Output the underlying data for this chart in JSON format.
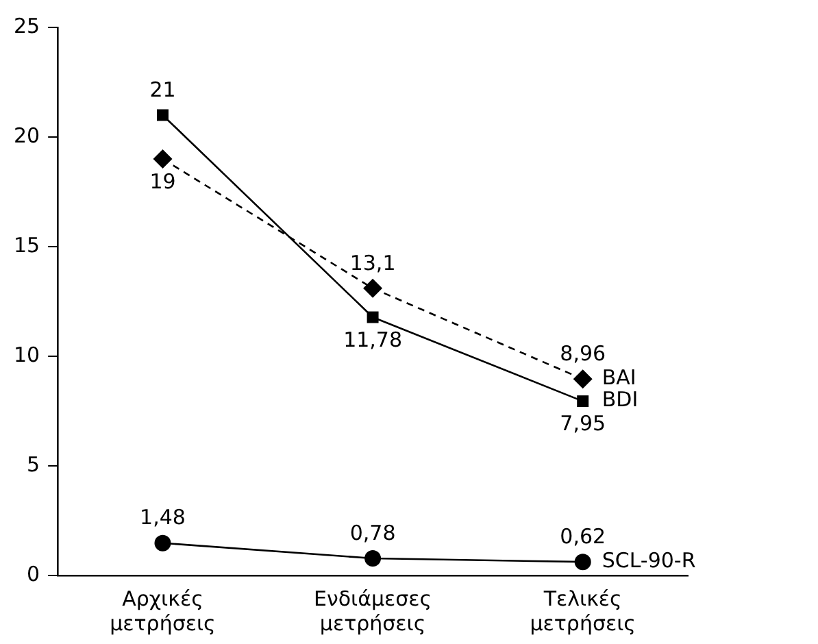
{
  "chart_data": {
    "type": "line",
    "categories": [
      "Αρχικές μετρήσεις",
      "Ενδιάμεσες μετρήσεις",
      "Τελικές μετρήσεις"
    ],
    "series": [
      {
        "name": "BAI",
        "color": "#000000",
        "marker": "diamond",
        "line_style": "dashed",
        "values": [
          19,
          13.1,
          8.96
        ],
        "value_labels": [
          "19",
          "13,1",
          "8,96"
        ]
      },
      {
        "name": "BDI",
        "color": "#000000",
        "marker": "square",
        "line_style": "solid",
        "values": [
          21,
          11.78,
          7.95
        ],
        "value_labels": [
          "21",
          "11,78",
          "7,95"
        ]
      },
      {
        "name": "SCL-90-R",
        "color": "#000000",
        "marker": "circle",
        "line_style": "solid",
        "values": [
          1.48,
          0.78,
          0.62
        ],
        "value_labels": [
          "1,48",
          "0,78",
          "0,62"
        ]
      }
    ],
    "ylim": [
      0,
      25
    ],
    "yticks": [
      0,
      5,
      10,
      15,
      20,
      25
    ],
    "grid": false,
    "legend": false
  }
}
